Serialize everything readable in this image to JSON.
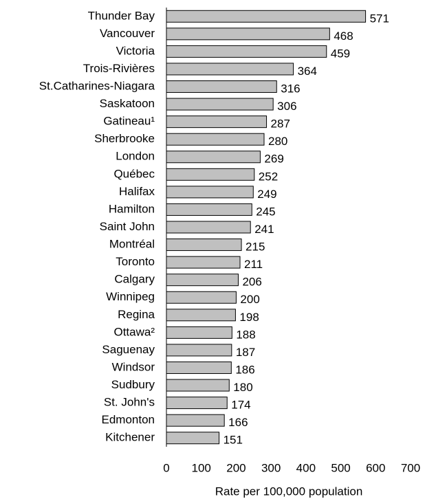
{
  "chart_data": {
    "type": "hbar",
    "xlabel": "Rate per 100,000 population",
    "categories": [
      "Thunder Bay",
      "Vancouver",
      "Victoria",
      "Trois-Rivières",
      "St.Catharines-Niagara",
      "Saskatoon",
      "Gatineau¹",
      "Sherbrooke",
      "London",
      "Québec",
      "Halifax",
      "Hamilton",
      "Saint John",
      "Montréal",
      "Toronto",
      "Calgary",
      "Winnipeg",
      "Regina",
      "Ottawa²",
      "Saguenay",
      "Windsor",
      "Sudbury",
      "St. John's",
      "Edmonton",
      "Kitchener"
    ],
    "values": [
      571,
      468,
      459,
      364,
      316,
      306,
      287,
      280,
      269,
      252,
      249,
      245,
      241,
      215,
      211,
      206,
      200,
      198,
      188,
      187,
      186,
      180,
      174,
      166,
      151
    ],
    "color": "#c0c0c0",
    "xlim": [
      0,
      700
    ],
    "xticks": [
      0,
      100,
      200,
      300,
      400,
      500,
      600,
      700
    ]
  }
}
